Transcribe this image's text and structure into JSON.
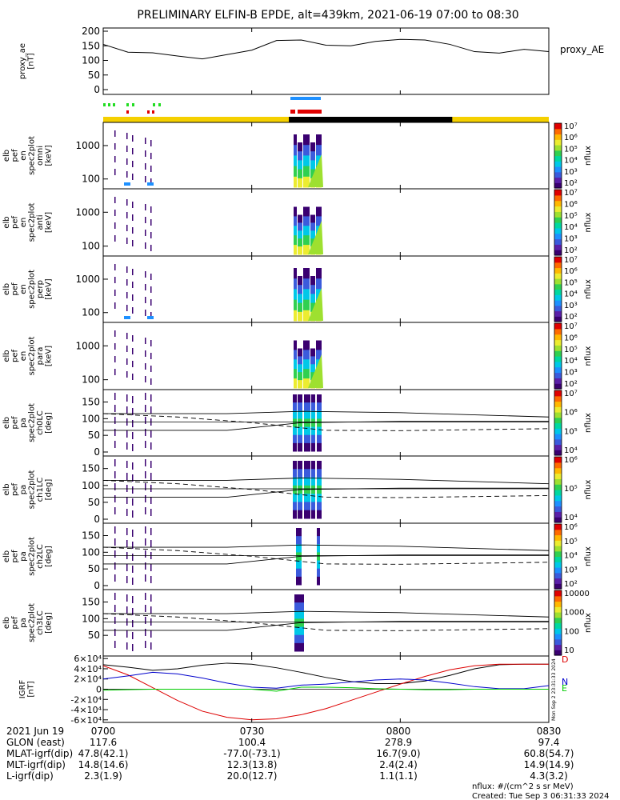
{
  "title": "PRELIMINARY ELFIN-B EPDE, alt=439km, 2021-06-19 07:00 to 08:30",
  "colors": {
    "sunlit_bar": "#f5d000",
    "shadow_bar": "#000000",
    "mode_green": "#22dd22",
    "mode_red": "#e00000",
    "mode_blue": "#1e90ff",
    "grf_x": "#dd0000",
    "grf_y": "#00cc00",
    "grf_z": "#0000cc",
    "grf_total": "#000000"
  },
  "colorbar_palette": [
    "#3a0070",
    "#5a1fa8",
    "#3b5bdc",
    "#1e90ff",
    "#00c8e8",
    "#00d8a0",
    "#30d050",
    "#9ee030",
    "#ecec30",
    "#ffb800",
    "#ff6a00",
    "#e00000"
  ],
  "chart_data": [
    {
      "type": "line",
      "ylabel": "proxy_ae [nT]",
      "legend": "proxy_AE",
      "ylim": [
        0,
        200
      ],
      "yticks": [
        "0",
        "50",
        "100",
        "150",
        "200"
      ],
      "x_minutes": [
        0,
        5,
        10,
        15,
        20,
        25,
        30,
        35,
        40,
        45,
        50,
        55,
        60,
        65,
        70,
        75,
        80,
        85,
        90
      ],
      "values": [
        155,
        128,
        126,
        115,
        105,
        120,
        135,
        168,
        170,
        152,
        150,
        165,
        172,
        170,
        155,
        130,
        125,
        138,
        130
      ]
    },
    {
      "type": "heatmap",
      "ylabel": [
        "elb",
        "pef",
        "en",
        "spec2plot",
        "omni",
        "[keV]"
      ],
      "yticks": [
        "100",
        "1000"
      ],
      "colorbar": {
        "label": "nflux",
        "ticks": [
          "10²",
          "10³",
          "10⁴",
          "10⁵",
          "10⁶",
          "10⁷"
        ]
      }
    },
    {
      "type": "heatmap",
      "ylabel": [
        "elb",
        "pef",
        "en",
        "spec2plot",
        "anti",
        "[keV]"
      ],
      "yticks": [
        "100",
        "1000"
      ],
      "colorbar": {
        "label": "nflux",
        "ticks": [
          "10²",
          "10³",
          "10⁴",
          "10⁵",
          "10⁶",
          "10⁷"
        ]
      }
    },
    {
      "type": "heatmap",
      "ylabel": [
        "elb",
        "pef",
        "en",
        "spec2plot",
        "perp",
        "[keV]"
      ],
      "yticks": [
        "100",
        "1000"
      ],
      "colorbar": {
        "label": "nflux",
        "ticks": [
          "10²",
          "10³",
          "10⁴",
          "10⁵",
          "10⁶",
          "10⁷"
        ]
      }
    },
    {
      "type": "heatmap",
      "ylabel": [
        "elb",
        "pef",
        "en",
        "spec2plot",
        "para",
        "[keV]"
      ],
      "yticks": [
        "100",
        "1000"
      ],
      "colorbar": {
        "label": "nflux",
        "ticks": [
          "10²",
          "10³",
          "10⁴",
          "10⁵",
          "10⁶",
          "10⁷"
        ]
      }
    },
    {
      "type": "heatmap",
      "ylabel": [
        "elb",
        "pef",
        "pa",
        "spec2plot",
        "ch0LC",
        "[deg]"
      ],
      "yticks": [
        "0",
        "50",
        "100",
        "150"
      ],
      "colorbar": {
        "label": "nflux",
        "ticks": [
          "10⁴",
          "10⁵",
          "10⁶",
          "10⁷"
        ]
      }
    },
    {
      "type": "heatmap",
      "ylabel": [
        "elb",
        "pef",
        "pa",
        "spec2plot",
        "ch1LC",
        "[deg]"
      ],
      "yticks": [
        "0",
        "50",
        "100",
        "150"
      ],
      "colorbar": {
        "label": "nflux",
        "ticks": [
          "10⁴",
          "10⁵",
          "10⁶"
        ]
      }
    },
    {
      "type": "heatmap",
      "ylabel": [
        "elb",
        "pef",
        "pa",
        "spec2plot",
        "ch2LC",
        "[deg]"
      ],
      "yticks": [
        "0",
        "50",
        "100",
        "150"
      ],
      "colorbar": {
        "label": "nflux",
        "ticks": [
          "10²",
          "10³",
          "10⁴",
          "10⁵",
          "10⁶"
        ]
      }
    },
    {
      "type": "heatmap",
      "ylabel": [
        "elb",
        "pef",
        "pa",
        "spec2plot",
        "ch3LC",
        "[deg]"
      ],
      "yticks": [
        "50",
        "100",
        "150"
      ],
      "colorbar": {
        "label": "nflux",
        "ticks": [
          "10",
          "100",
          "1000",
          "10000"
        ]
      }
    },
    {
      "type": "line",
      "ylabel": "IGRF [nT]",
      "ylim": [
        -65000,
        65000
      ],
      "yticks": [
        "-6×10⁴",
        "-4×10⁴",
        "-2×10⁴",
        "0",
        "2×10⁴",
        "4×10⁴",
        "6×10⁴"
      ],
      "x_minutes": [
        0,
        5,
        10,
        15,
        20,
        25,
        30,
        35,
        40,
        45,
        50,
        55,
        60,
        65,
        70,
        75,
        80,
        85,
        90
      ],
      "series": [
        {
          "name": "",
          "values": [
            48000,
            43000,
            37000,
            40000,
            47000,
            51000,
            49000,
            42000,
            33000,
            23000,
            15000,
            11000,
            11000,
            16000,
            27000,
            40000,
            48000,
            49000,
            49000
          ]
        },
        {
          "name": "D",
          "values": [
            46000,
            28000,
            3000,
            -22000,
            -43000,
            -55000,
            -60000,
            -58000,
            -50000,
            -38000,
            -22000,
            -6000,
            10000,
            25000,
            38000,
            46000,
            49000,
            49000,
            49000
          ]
        },
        {
          "name": "N",
          "values": [
            20000,
            26000,
            33000,
            30000,
            22000,
            12000,
            4000,
            2000,
            8000,
            10000,
            14000,
            18000,
            20000,
            18000,
            12000,
            5000,
            1000,
            1000,
            7000
          ]
        },
        {
          "name": "E",
          "values": [
            -2000,
            -1000,
            0,
            0,
            0,
            0,
            0,
            -4000,
            4000,
            4000,
            3000,
            1000,
            0,
            -1000,
            -1000,
            0,
            0,
            0,
            0
          ]
        }
      ]
    }
  ],
  "xaxis": {
    "ticks": [
      "0700",
      "0730",
      "0800",
      "0830"
    ],
    "rows": [
      {
        "label": "2021 Jun 19",
        "values": [
          "0700",
          "0730",
          "0800",
          "0830"
        ]
      },
      {
        "label": "GLON (east)",
        "values": [
          "117.6",
          "100.4",
          "278.9",
          "97.4"
        ]
      },
      {
        "label": "MLAT-igrf(dip)",
        "values": [
          "47.8(42.1)",
          "-77.0(-73.1)",
          "16.7(9.0)",
          "60.8(54.7)"
        ]
      },
      {
        "label": "MLT-igrf(dip)",
        "values": [
          "14.8(14.6)",
          "12.3(13.8)",
          "2.4(2.4)",
          "14.9(14.9)"
        ]
      },
      {
        "label": "L-igrf(dip)",
        "values": [
          "2.3(1.9)",
          "20.0(12.7)",
          "1.1(1.1)",
          "4.3(3.2)"
        ]
      }
    ]
  },
  "footer": {
    "units": "nflux: #/(cm^2 s sr MeV)",
    "created": "Created: Tue Sep  3 06:31:33 2024",
    "side_stamp": "Mon Sep  2 23:31:33 2024"
  }
}
